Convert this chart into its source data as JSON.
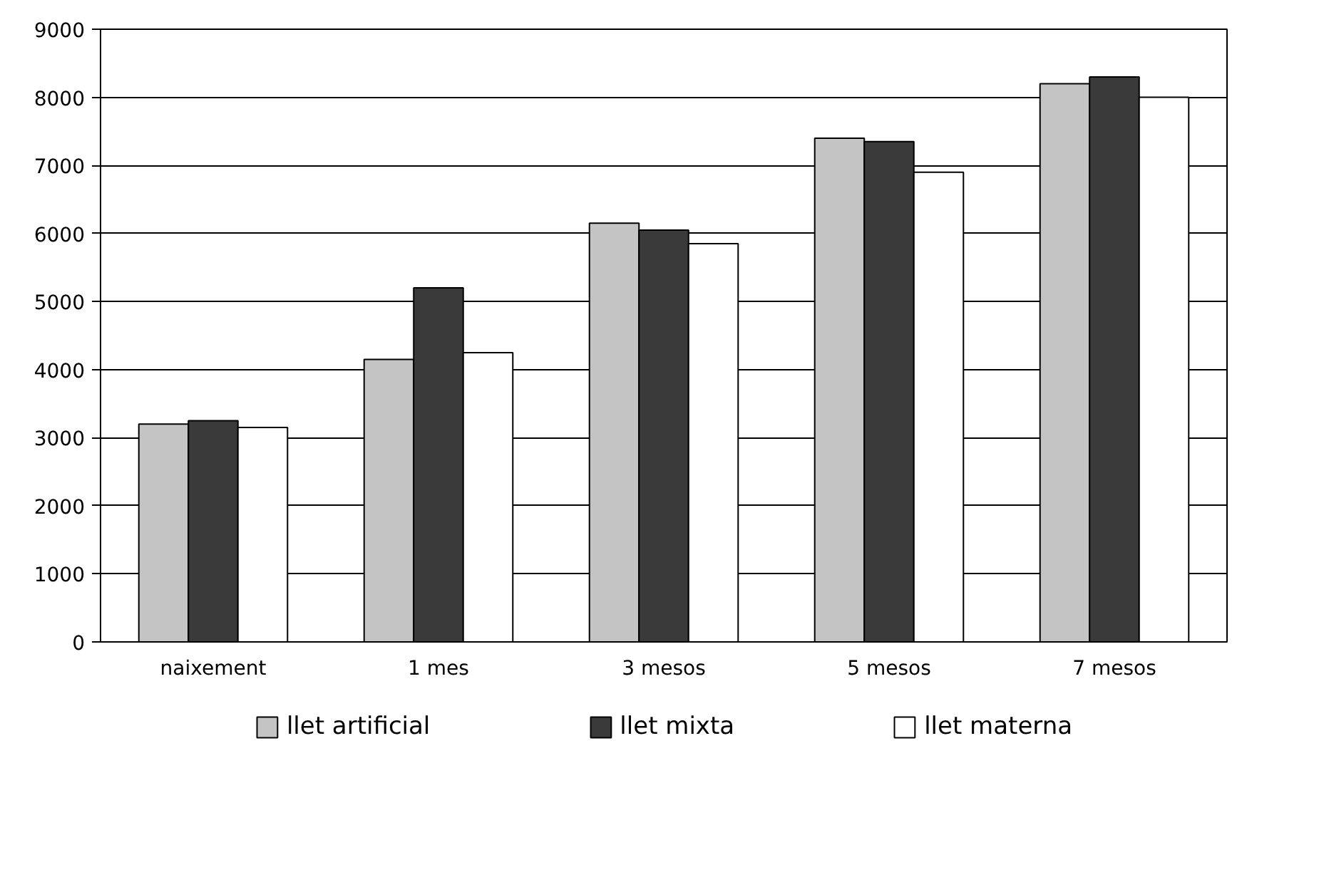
{
  "chart_data": {
    "type": "bar",
    "categories": [
      "naixement",
      "1 mes",
      "3 mesos",
      "5 mesos",
      "7 mesos"
    ],
    "series": [
      {
        "name": "llet artificial",
        "color": "#c4c4c4",
        "values": [
          3200,
          4150,
          6150,
          7400,
          8200
        ]
      },
      {
        "name": "llet mixta",
        "color": "#3a3a3a",
        "values": [
          3250,
          5200,
          6050,
          7350,
          8300
        ]
      },
      {
        "name": "llet materna",
        "color": "#ffffff",
        "values": [
          3150,
          4250,
          5850,
          6900,
          8000
        ]
      }
    ],
    "ylim": [
      0,
      9000
    ],
    "yticks": [
      0,
      1000,
      2000,
      3000,
      4000,
      5000,
      6000,
      7000,
      8000,
      9000
    ],
    "grid": "y",
    "legend": "bottom"
  }
}
